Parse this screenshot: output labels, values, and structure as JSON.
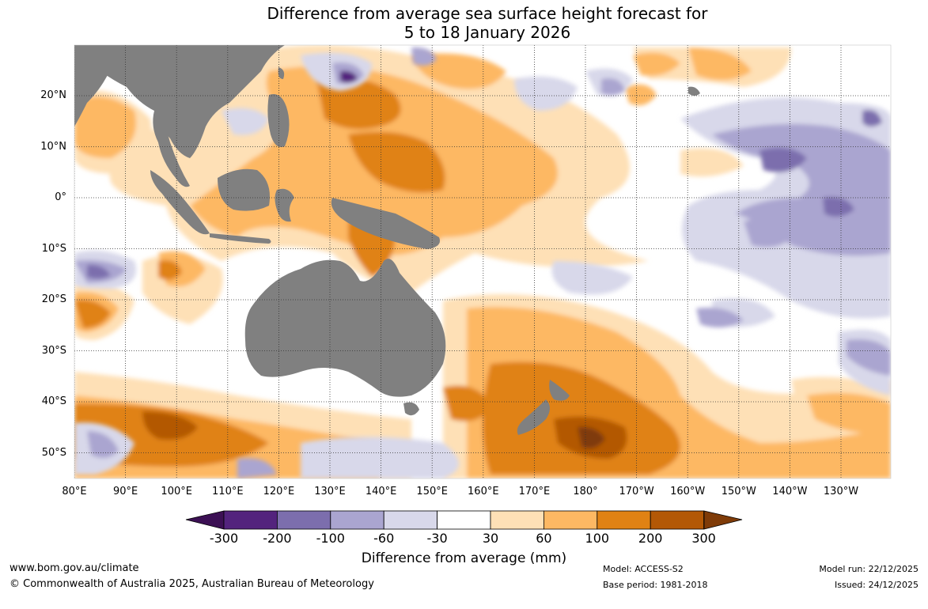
{
  "title": {
    "line1": "Difference from average sea surface height forecast for",
    "line2": "5 to 18 January 2026"
  },
  "map": {
    "lat_labels": [
      "20°N",
      "10°N",
      "0°",
      "10°S",
      "20°S",
      "30°S",
      "40°S",
      "50°S"
    ],
    "lon_labels": [
      "80°E",
      "90°E",
      "100°E",
      "110°E",
      "120°E",
      "130°E",
      "140°E",
      "150°E",
      "160°E",
      "170°E",
      "180°",
      "170°W",
      "160°W",
      "150°W",
      "140°W",
      "130°W"
    ],
    "colors": {
      "land": "#808080",
      "ocean_neutral": "#ffffff",
      "grid": "#333333"
    },
    "anomaly_regions": [
      {
        "name": "western-pacific-warm-pool",
        "category": 100
      },
      {
        "name": "papua-coral-sea",
        "category": 100
      },
      {
        "name": "southern-ocean-south-of-australia",
        "category": 200
      },
      {
        "name": "new-zealand-tasman",
        "category": 200
      },
      {
        "name": "east-of-new-zealand",
        "category": 300
      },
      {
        "name": "central-pacific-equatorial",
        "category": -60
      },
      {
        "name": "eastern-pacific-north",
        "category": -100
      },
      {
        "name": "indian-ocean-south",
        "category": 30
      }
    ]
  },
  "colorbar": {
    "labels": [
      "-300",
      "-200",
      "-100",
      "-60",
      "-30",
      "30",
      "60",
      "100",
      "200",
      "300"
    ],
    "colors": [
      "#3c1054",
      "#53237d",
      "#7c6ead",
      "#aaa5d0",
      "#d8d8ea",
      "#ffffff",
      "#fee0b6",
      "#fdb863",
      "#e08214",
      "#b35806",
      "#7f3b08"
    ],
    "title": "Difference from average (mm)"
  },
  "footer": {
    "website": "www.bom.gov.au/climate",
    "copyright": "© Commonwealth of Australia 2025, Australian Bureau of Meteorology",
    "model": "Model: ACCESS-S2",
    "base_period": "Base period: 1981-2018",
    "model_run": "Model run: 22/12/2025",
    "issued": "Issued: 24/12/2025"
  }
}
